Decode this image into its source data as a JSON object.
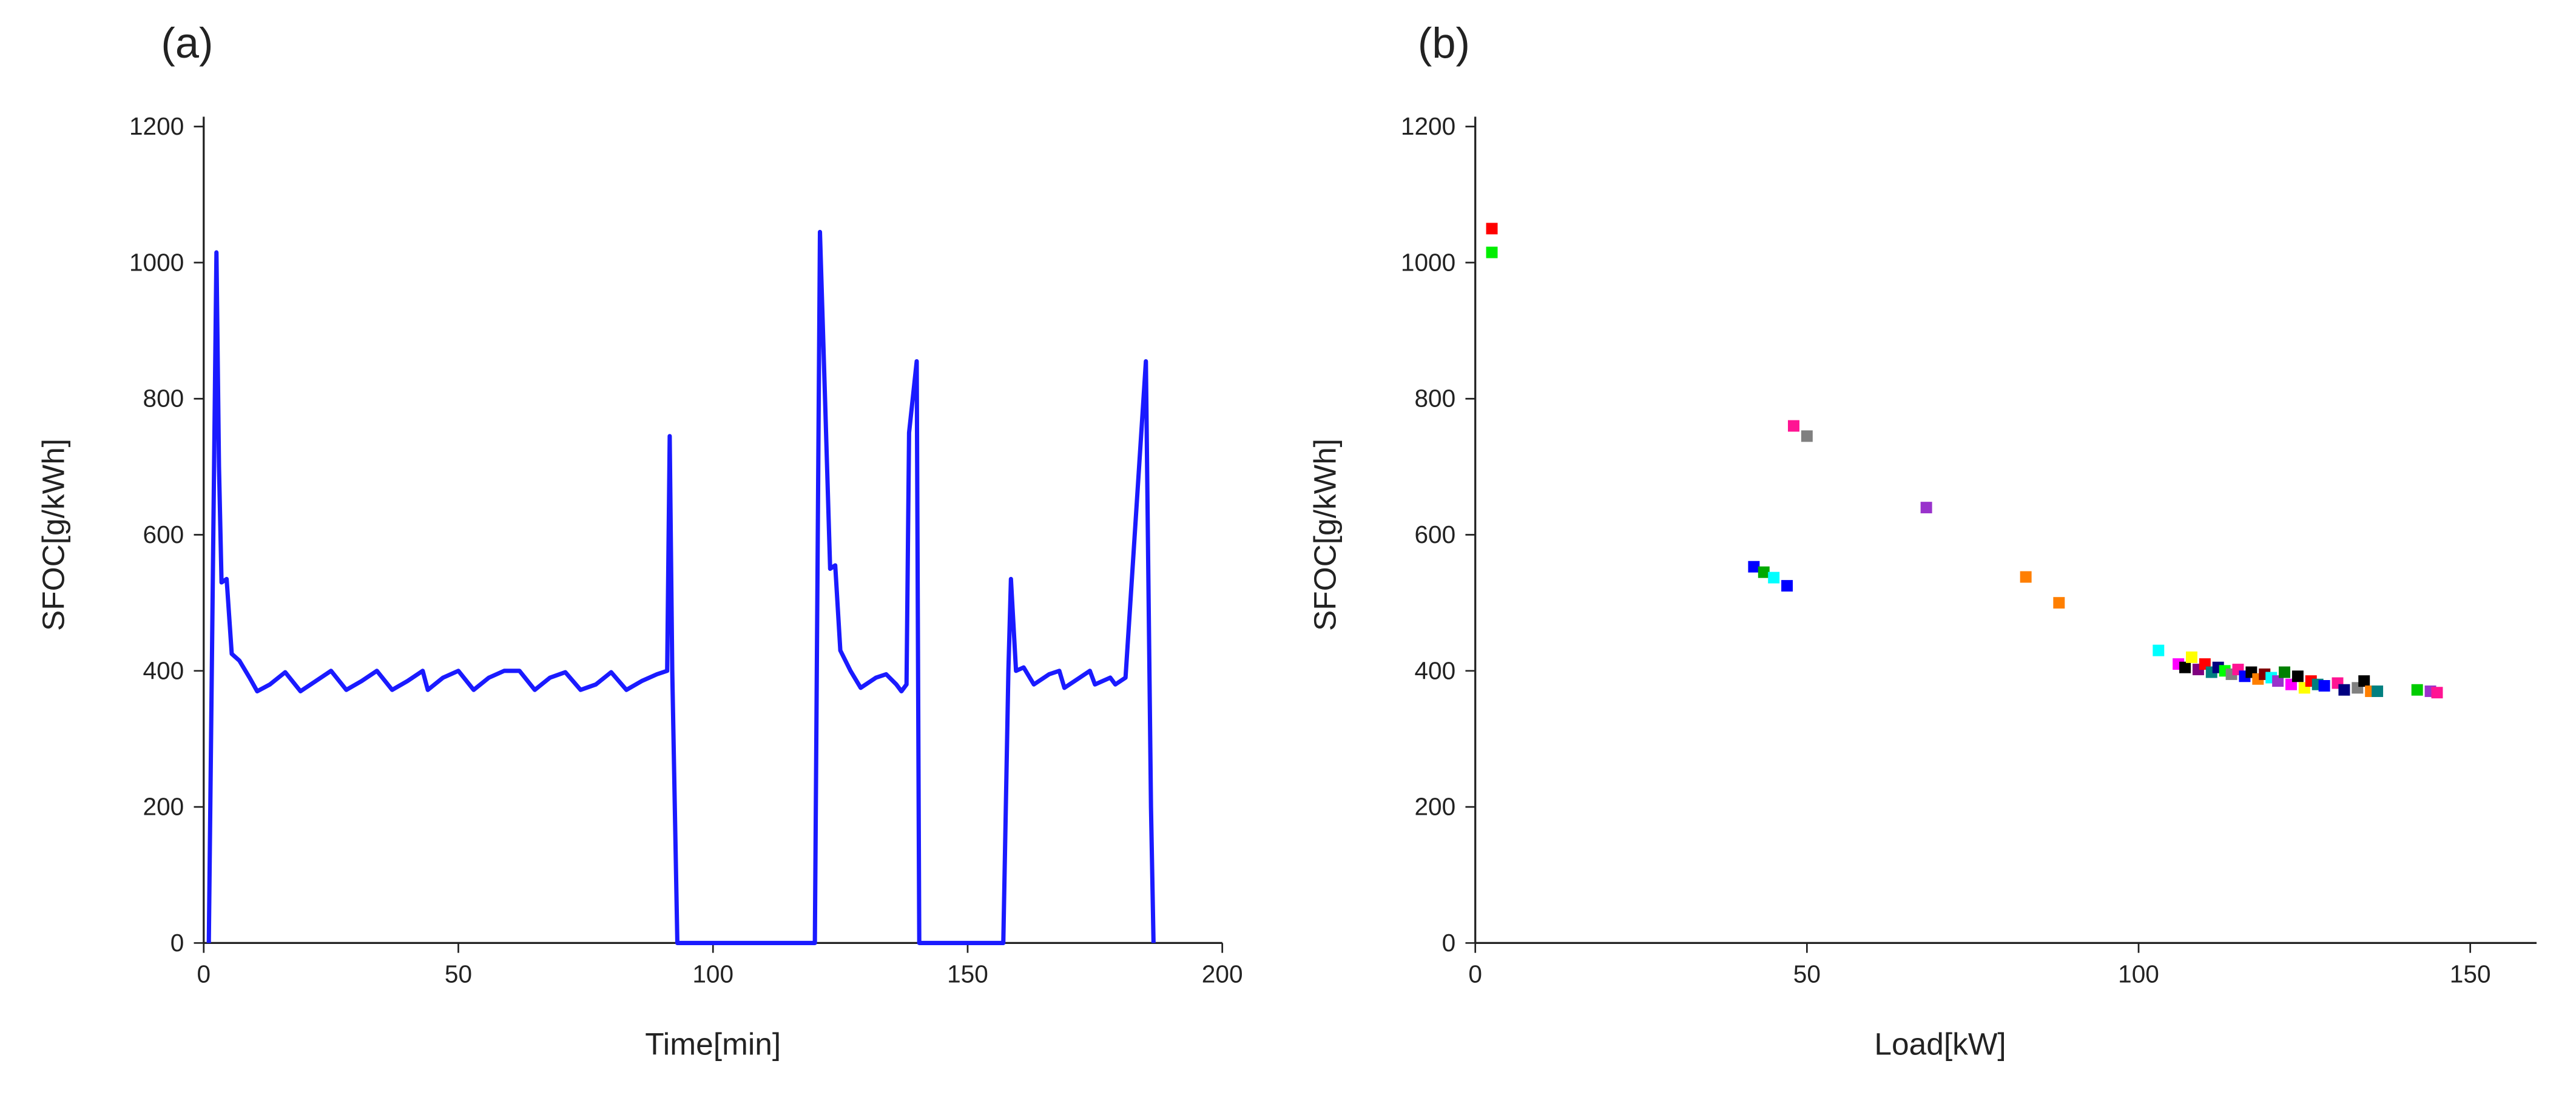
{
  "chart_data": [
    {
      "type": "line",
      "panel_label": "(a)",
      "x_label": "Time[min]",
      "y_label": "SFOC[g/kWh]",
      "color": "#1a1aff",
      "xlim": [
        0,
        200
      ],
      "xticks": [
        0,
        50,
        100,
        150,
        200
      ],
      "ylim": [
        0,
        1200
      ],
      "yticks": [
        0,
        200,
        400,
        600,
        800,
        1000,
        1200
      ],
      "x": [
        1,
        1.5,
        2.5,
        3,
        3.5,
        4.5,
        5.5,
        7,
        9,
        10.5,
        13,
        16,
        19,
        22,
        25,
        28,
        31,
        34,
        37,
        40,
        43,
        44,
        47,
        50,
        53,
        56,
        59,
        62,
        65,
        68,
        71,
        74,
        77,
        80,
        83,
        86,
        89,
        91,
        91.5,
        92,
        93,
        120,
        121,
        122,
        123,
        124,
        125,
        127,
        129,
        132,
        134,
        136,
        137,
        138,
        138.5,
        140,
        140.5,
        157,
        158,
        158.5,
        159.5,
        161,
        163,
        166,
        168,
        169,
        172,
        174,
        175,
        178,
        179,
        181,
        185,
        186,
        186.5
      ],
      "values": [
        0,
        340,
        1015,
        700,
        530,
        535,
        425,
        415,
        390,
        370,
        380,
        398,
        370,
        385,
        400,
        372,
        385,
        400,
        372,
        385,
        400,
        372,
        390,
        400,
        372,
        390,
        400,
        400,
        372,
        390,
        398,
        372,
        380,
        398,
        372,
        385,
        395,
        400,
        745,
        400,
        0,
        0,
        1045,
        800,
        550,
        555,
        430,
        400,
        375,
        390,
        395,
        380,
        370,
        380,
        750,
        855,
        0,
        0,
        400,
        535,
        400,
        405,
        380,
        395,
        400,
        375,
        390,
        400,
        380,
        390,
        380,
        390,
        855,
        200,
        0
      ]
    },
    {
      "type": "scatter",
      "panel_label": "(b)",
      "x_label": "Load[kW]",
      "y_label": "SFOC[g/kWh]",
      "xlim": [
        0,
        160
      ],
      "xticks": [
        0,
        50,
        100,
        150
      ],
      "ylim": [
        0,
        1200
      ],
      "yticks": [
        0,
        200,
        400,
        600,
        800,
        1000,
        1200
      ],
      "x": [
        2.5,
        2.5,
        48,
        50,
        68,
        83,
        88,
        42,
        43.5,
        45,
        47,
        103,
        106,
        107,
        108,
        109,
        110,
        111,
        112,
        113,
        114,
        115,
        116,
        117,
        118,
        119,
        120,
        121,
        122,
        123,
        124,
        125,
        126,
        127,
        128,
        130,
        131,
        133,
        134,
        135,
        136,
        142,
        144,
        145
      ],
      "values": [
        1050,
        1015,
        760,
        745,
        640,
        538,
        500,
        553,
        545,
        537,
        525,
        430,
        410,
        405,
        420,
        402,
        410,
        398,
        405,
        400,
        395,
        402,
        392,
        398,
        388,
        395,
        390,
        385,
        398,
        380,
        392,
        375,
        385,
        380,
        378,
        382,
        372,
        375,
        385,
        370,
        370,
        372,
        370,
        368
      ],
      "colors": [
        "#ff0000",
        "#00ee00",
        "#ff1493",
        "#808080",
        "#9932cc",
        "#ff7f00",
        "#ff7f00",
        "#0000ff",
        "#00aa00",
        "#00ffff",
        "#0000ff",
        "#00ffff",
        "#ff00ff",
        "#000000",
        "#ffff00",
        "#800080",
        "#ff0000",
        "#008080",
        "#000080",
        "#00ff00",
        "#808080",
        "#ff1493",
        "#0000ff",
        "#000000",
        "#ff7f00",
        "#800000",
        "#00ffff",
        "#9932cc",
        "#008000",
        "#ff00ff",
        "#000000",
        "#ffff00",
        "#ff0000",
        "#008080",
        "#0000ff",
        "#ff1493",
        "#000080",
        "#808080",
        "#000000",
        "#ff7f00",
        "#008080",
        "#00cc00",
        "#9932cc",
        "#ff1493"
      ]
    }
  ]
}
